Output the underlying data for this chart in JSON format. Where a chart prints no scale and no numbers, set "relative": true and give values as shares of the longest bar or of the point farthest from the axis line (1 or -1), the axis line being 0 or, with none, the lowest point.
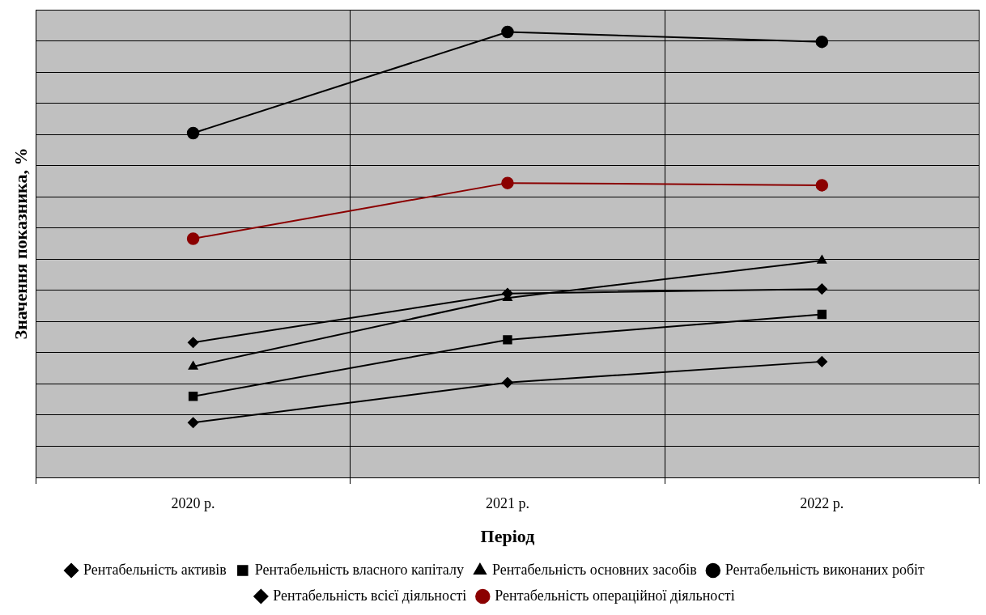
{
  "chart_data": {
    "type": "line",
    "relative": true,
    "xlabel": "Період",
    "ylabel": "Значення показника, %",
    "categories": [
      "2020 р.",
      "2021 р.",
      "2022 р."
    ],
    "grid": true,
    "legend": "bottom",
    "series": [
      {
        "name": "Рентабельність активів",
        "color": "#000000",
        "marker": "diamond",
        "values": [
          0.123,
          0.213,
          0.26
        ]
      },
      {
        "name": "Рентабельність власного капіталу",
        "color": "#000000",
        "marker": "square",
        "values": [
          0.182,
          0.309,
          0.366
        ]
      },
      {
        "name": "Рентабельність основних засобів",
        "color": "#000000",
        "marker": "triangle",
        "values": [
          0.249,
          0.403,
          0.487
        ]
      },
      {
        "name": "Рентабельність виконаних робіт",
        "color": "#000000",
        "marker": "circle",
        "values": [
          0.773,
          1,
          0.978
        ]
      },
      {
        "name": "Рентабельність всієї діяльності",
        "color": "#000000",
        "marker": "diamond",
        "values": [
          0.303,
          0.413,
          0.423
        ]
      },
      {
        "name": "Рентабельність операційної діяльності",
        "color": "#8b0000",
        "marker": "circle",
        "values": [
          0.536,
          0.661,
          0.656
        ]
      }
    ]
  }
}
